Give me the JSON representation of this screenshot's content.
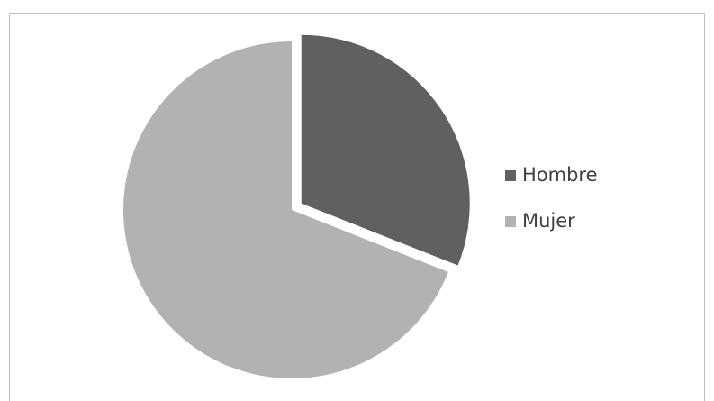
{
  "chart_data": {
    "type": "pie",
    "categories": [
      "Hombre",
      "Mujer"
    ],
    "values": [
      31,
      69
    ],
    "colors": [
      "#606060",
      "#b2b2b2"
    ],
    "exploded": [
      true,
      false
    ]
  }
}
